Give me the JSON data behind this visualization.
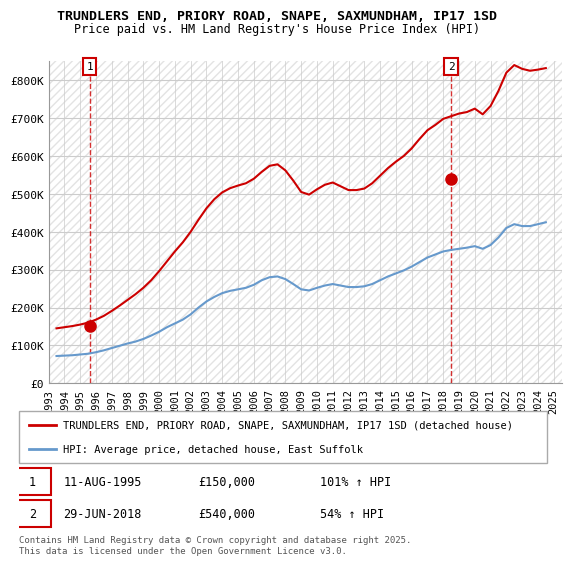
{
  "title": "TRUNDLERS END, PRIORY ROAD, SNAPE, SAXMUNDHAM, IP17 1SD",
  "subtitle": "Price paid vs. HM Land Registry's House Price Index (HPI)",
  "ylim": [
    0,
    850000
  ],
  "yticks": [
    0,
    100000,
    200000,
    300000,
    400000,
    500000,
    600000,
    700000,
    800000
  ],
  "ytick_labels": [
    "£0",
    "£100K",
    "£200K",
    "£300K",
    "£400K",
    "£500K",
    "£600K",
    "£700K",
    "£800K"
  ],
  "xlim_start": 1993.0,
  "xlim_end": 2025.5,
  "xticks": [
    1993,
    1994,
    1995,
    1996,
    1997,
    1998,
    1999,
    2000,
    2001,
    2002,
    2003,
    2004,
    2005,
    2006,
    2007,
    2008,
    2009,
    2010,
    2011,
    2012,
    2013,
    2014,
    2015,
    2016,
    2017,
    2018,
    2019,
    2020,
    2021,
    2022,
    2023,
    2024,
    2025
  ],
  "property_color": "#cc0000",
  "hpi_color": "#6699cc",
  "annotation_box_color": "#cc0000",
  "background_color": "#ffffff",
  "grid_color": "#cccccc",
  "legend_label_property": "TRUNDLERS END, PRIORY ROAD, SNAPE, SAXMUNDHAM, IP17 1SD (detached house)",
  "legend_label_hpi": "HPI: Average price, detached house, East Suffolk",
  "annotation1_date": "11-AUG-1995",
  "annotation1_price": "£150,000",
  "annotation1_hpi": "101% ↑ HPI",
  "annotation2_date": "29-JUN-2018",
  "annotation2_price": "£540,000",
  "annotation2_hpi": "54% ↑ HPI",
  "copyright_text": "Contains HM Land Registry data © Crown copyright and database right 2025.\nThis data is licensed under the Open Government Licence v3.0.",
  "hpi_data_x": [
    1993.5,
    1994.0,
    1994.5,
    1995.0,
    1995.5,
    1996.0,
    1996.5,
    1997.0,
    1997.5,
    1998.0,
    1998.5,
    1999.0,
    1999.5,
    2000.0,
    2000.5,
    2001.0,
    2001.5,
    2002.0,
    2002.5,
    2003.0,
    2003.5,
    2004.0,
    2004.5,
    2005.0,
    2005.5,
    2006.0,
    2006.5,
    2007.0,
    2007.5,
    2008.0,
    2008.5,
    2009.0,
    2009.5,
    2010.0,
    2010.5,
    2011.0,
    2011.5,
    2012.0,
    2012.5,
    2013.0,
    2013.5,
    2014.0,
    2014.5,
    2015.0,
    2015.5,
    2016.0,
    2016.5,
    2017.0,
    2017.5,
    2018.0,
    2018.5,
    2019.0,
    2019.5,
    2020.0,
    2020.5,
    2021.0,
    2021.5,
    2022.0,
    2022.5,
    2023.0,
    2023.5,
    2024.0,
    2024.5
  ],
  "hpi_data_y": [
    72000,
    73000,
    74000,
    76000,
    78000,
    82000,
    87000,
    93000,
    99000,
    105000,
    110000,
    117000,
    126000,
    136000,
    148000,
    158000,
    168000,
    182000,
    200000,
    216000,
    228000,
    238000,
    244000,
    248000,
    252000,
    260000,
    272000,
    280000,
    282000,
    275000,
    262000,
    248000,
    245000,
    252000,
    258000,
    262000,
    258000,
    254000,
    254000,
    256000,
    262000,
    272000,
    282000,
    290000,
    298000,
    308000,
    320000,
    332000,
    340000,
    348000,
    352000,
    355000,
    358000,
    362000,
    355000,
    365000,
    385000,
    410000,
    420000,
    415000,
    415000,
    420000,
    425000
  ],
  "property_data_x": [
    1993.5,
    1994.0,
    1994.5,
    1995.0,
    1995.5,
    1996.0,
    1996.5,
    1997.0,
    1997.5,
    1998.0,
    1998.5,
    1999.0,
    1999.5,
    2000.0,
    2000.5,
    2001.0,
    2001.5,
    2002.0,
    2002.5,
    2003.0,
    2003.5,
    2004.0,
    2004.5,
    2005.0,
    2005.5,
    2006.0,
    2006.5,
    2007.0,
    2007.5,
    2008.0,
    2008.5,
    2009.0,
    2009.5,
    2010.0,
    2010.5,
    2011.0,
    2011.5,
    2012.0,
    2012.5,
    2013.0,
    2013.5,
    2014.0,
    2014.5,
    2015.0,
    2015.5,
    2016.0,
    2016.5,
    2017.0,
    2017.5,
    2018.0,
    2018.5,
    2019.0,
    2019.5,
    2020.0,
    2020.5,
    2021.0,
    2021.5,
    2022.0,
    2022.5,
    2023.0,
    2023.5,
    2024.0,
    2024.5
  ],
  "property_data_y": [
    145000,
    148000,
    151000,
    155000,
    160000,
    168000,
    178000,
    191000,
    205000,
    220000,
    235000,
    252000,
    272000,
    296000,
    322000,
    348000,
    372000,
    400000,
    432000,
    462000,
    486000,
    504000,
    515000,
    522000,
    528000,
    540000,
    558000,
    574000,
    578000,
    562000,
    535000,
    505000,
    498000,
    512000,
    524000,
    530000,
    520000,
    510000,
    510000,
    514000,
    528000,
    548000,
    568000,
    585000,
    600000,
    620000,
    645000,
    668000,
    682000,
    698000,
    705000,
    712000,
    716000,
    725000,
    710000,
    732000,
    772000,
    820000,
    840000,
    830000,
    825000,
    828000,
    832000
  ],
  "sale1_x": 1995.6,
  "sale1_y": 150000,
  "sale2_x": 2018.5,
  "sale2_y": 540000
}
